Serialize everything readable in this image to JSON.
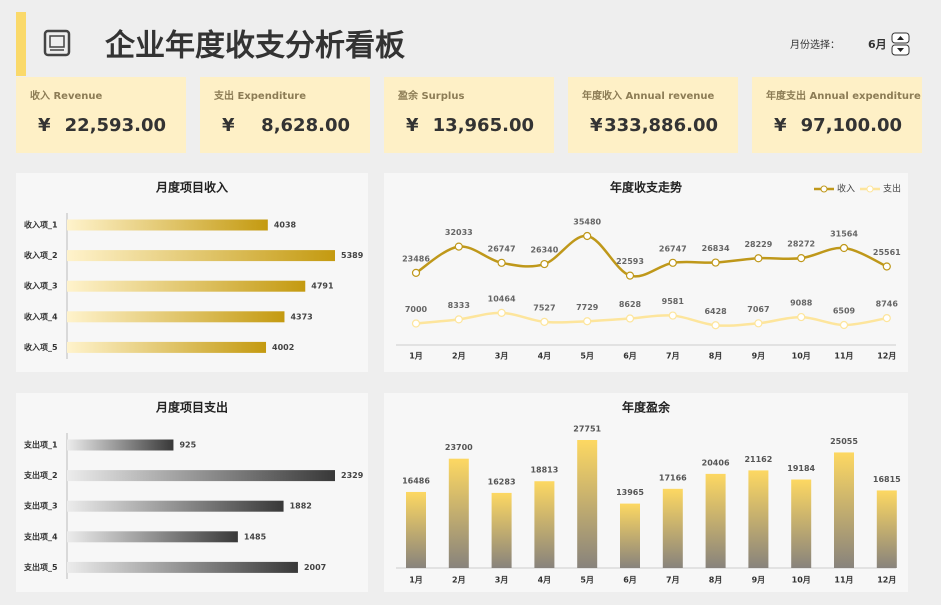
{
  "header": {
    "title": "企业年度收支分析看板",
    "month_label": "月份选择：",
    "month": "6月"
  },
  "kpis": [
    {
      "label": "收入 Revenue",
      "currency": "¥",
      "value": "22,593.00"
    },
    {
      "label": "支出 Expenditure",
      "currency": "¥",
      "value": "8,628.00"
    },
    {
      "label": "盈余 Surplus",
      "currency": "¥",
      "value": "13,965.00"
    },
    {
      "label": "年度收入 Annual revenue",
      "currency": "¥",
      "value": "333,886.00"
    },
    {
      "label": "年度支出 Annual expenditure",
      "currency": "¥",
      "value": "97,100.00"
    }
  ],
  "chart_data": [
    {
      "type": "bar",
      "orientation": "horizontal",
      "title": "月度项目收入",
      "categories": [
        "收入项_1",
        "收入项_2",
        "收入项_3",
        "收入项_4",
        "收入项_5"
      ],
      "values": [
        4038,
        5389,
        4791,
        4373,
        4002
      ],
      "gradient": [
        "#fff3cc",
        "#c49a10"
      ]
    },
    {
      "type": "bar",
      "orientation": "horizontal",
      "title": "月度项目支出",
      "categories": [
        "支出项_1",
        "支出项_2",
        "支出项_3",
        "支出项_4",
        "支出项_5"
      ],
      "values": [
        925,
        2329,
        1882,
        1485,
        2007
      ],
      "gradient": [
        "#ececec",
        "#383838"
      ]
    },
    {
      "type": "line",
      "title": "年度收支走势",
      "legend": "top-right",
      "categories": [
        "1月",
        "2月",
        "3月",
        "4月",
        "5月",
        "6月",
        "7月",
        "8月",
        "9月",
        "10月",
        "11月",
        "12月"
      ],
      "series": [
        {
          "name": "收入",
          "color": "#bf981a",
          "values": [
            23486,
            32033,
            26747,
            26340,
            35480,
            22593,
            26747,
            26834,
            28229,
            28272,
            31564,
            25561
          ]
        },
        {
          "name": "支出",
          "color": "#fde59c",
          "values": [
            7000,
            8333,
            10464,
            7527,
            7729,
            8628,
            9581,
            6428,
            7067,
            9088,
            6509,
            8746
          ]
        }
      ]
    },
    {
      "type": "bar",
      "orientation": "vertical",
      "title": "年度盈余",
      "categories": [
        "1月",
        "2月",
        "3月",
        "4月",
        "5月",
        "6月",
        "7月",
        "8月",
        "9月",
        "10月",
        "11月",
        "12月"
      ],
      "values": [
        16486,
        23700,
        16283,
        18813,
        27751,
        13965,
        17166,
        20406,
        21162,
        19184,
        25055,
        16815
      ],
      "gradient": [
        "#fdd862",
        "#88837c"
      ]
    }
  ]
}
